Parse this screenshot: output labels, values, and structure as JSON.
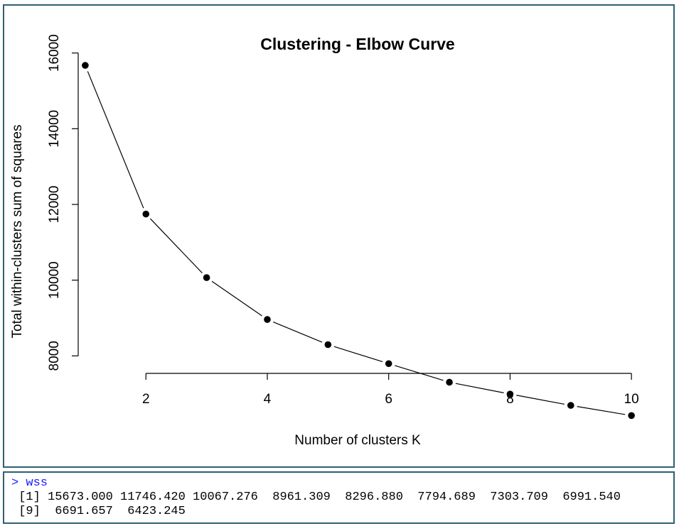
{
  "chart_data": {
    "type": "line",
    "title": "Clustering - Elbow Curve",
    "xlabel": "Number of clusters K",
    "ylabel": "Total within-clusters sum of squares",
    "x": [
      1,
      2,
      3,
      4,
      5,
      6,
      7,
      8,
      9,
      10
    ],
    "y": [
      15673.0,
      11746.42,
      10067.276,
      8961.309,
      8296.88,
      7794.689,
      7303.709,
      6991.54,
      6691.657,
      6423.245
    ],
    "xticks": [
      2,
      4,
      6,
      8,
      10
    ],
    "yticks": [
      8000,
      10000,
      12000,
      14000,
      16000
    ],
    "xlim": [
      0.65,
      10.35
    ],
    "ylim": [
      6000,
      16500
    ],
    "markers": "filled-circle",
    "line_color": "#000000",
    "grid": false
  },
  "console": {
    "prompt_line": "> wss",
    "output_lines": [
      " [1] 15673.000 11746.420 10067.276  8961.309  8296.880  7794.689  7303.709  6991.540",
      " [9]  6691.657  6423.245"
    ],
    "prompt_color": "#1a1aff"
  }
}
